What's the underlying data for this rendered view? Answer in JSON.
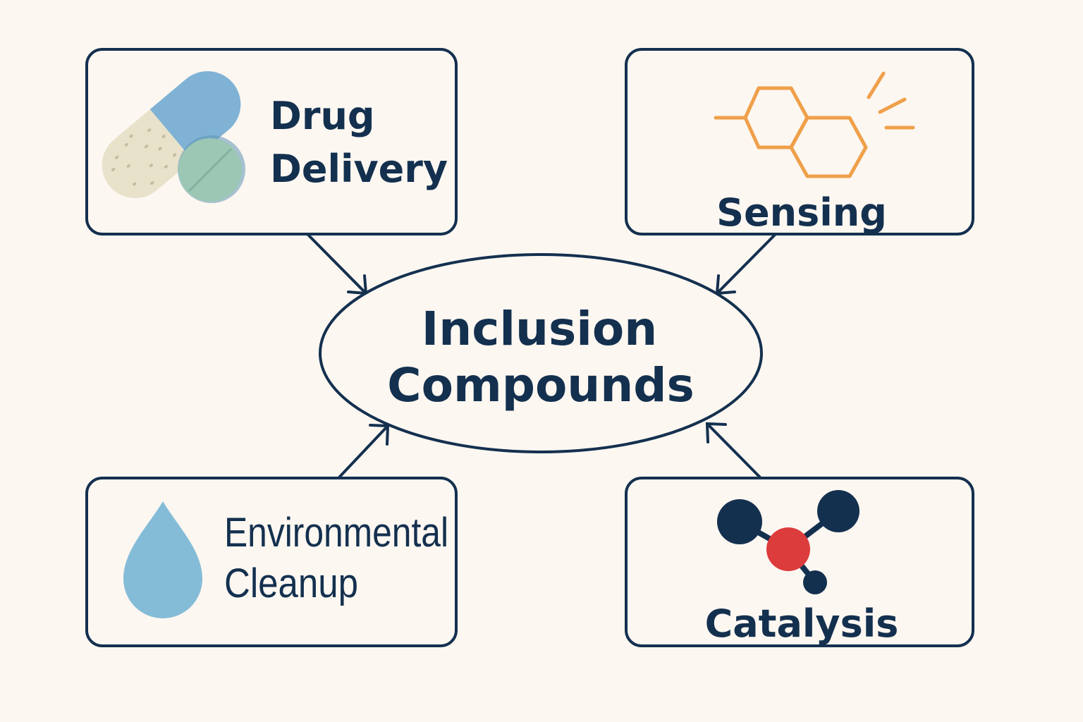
{
  "center": {
    "line1": "Inclusion",
    "line2": "Compounds"
  },
  "boxes": {
    "drug_delivery": {
      "line1": "Drug",
      "line2": "Delivery",
      "icon": "pill-capsule-icon"
    },
    "sensing": {
      "label": "Sensing",
      "icon": "hexagon-molecule-icon"
    },
    "environmental_cleanup": {
      "line1": "Environmental",
      "line2": "Cleanup",
      "icon": "water-drop-icon"
    },
    "catalysis": {
      "label": "Catalysis",
      "icon": "molecule-icon"
    }
  },
  "colors": {
    "ink": "#14304f",
    "background": "#fcf7f1",
    "capsule_blue": "#7fb2d4",
    "capsule_beige": "#e8e2cb",
    "tablet_green": "#9cc7b4",
    "sensing_orange": "#efa04a",
    "drop_blue": "#84bcd8",
    "atom_red": "#dc3c3c",
    "atom_navy": "#14304f"
  }
}
